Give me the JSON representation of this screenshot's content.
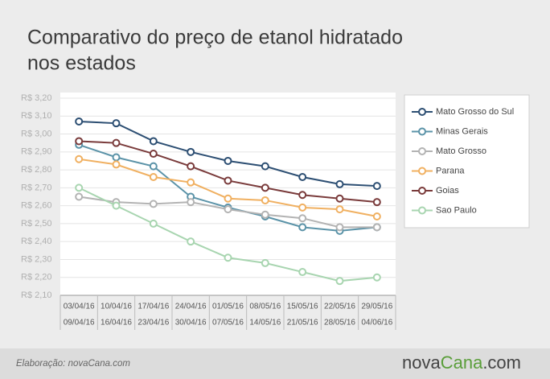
{
  "title": "Comparativo do preço de etanol hidratado nos estados",
  "footer": {
    "credit": "Elaboração: novaCana.com",
    "logo_left": "nova",
    "logo_mid": "Cana",
    "logo_right": ".com"
  },
  "chart_data": {
    "type": "line",
    "categories": [
      [
        "03/04/16",
        "09/04/16"
      ],
      [
        "10/04/16",
        "16/04/16"
      ],
      [
        "17/04/16",
        "23/04/16"
      ],
      [
        "24/04/16",
        "30/04/16"
      ],
      [
        "01/05/16",
        "07/05/16"
      ],
      [
        "08/05/16",
        "14/05/16"
      ],
      [
        "15/05/16",
        "21/05/16"
      ],
      [
        "22/05/16",
        "28/05/16"
      ],
      [
        "29/05/16",
        "04/06/16"
      ]
    ],
    "ylim": [
      2.1,
      3.2
    ],
    "yticks": [
      {
        "value": 2.1,
        "label": "R$ 2,10"
      },
      {
        "value": 2.2,
        "label": "R$ 2,20"
      },
      {
        "value": 2.3,
        "label": "R$ 2,30"
      },
      {
        "value": 2.4,
        "label": "R$ 2,40"
      },
      {
        "value": 2.5,
        "label": "R$ 2,50"
      },
      {
        "value": 2.6,
        "label": "R$ 2,60"
      },
      {
        "value": 2.7,
        "label": "R$ 2,70"
      },
      {
        "value": 2.8,
        "label": "R$ 2,80"
      },
      {
        "value": 2.9,
        "label": "R$ 2,90"
      },
      {
        "value": 3.0,
        "label": "R$ 3,00"
      },
      {
        "value": 3.1,
        "label": "R$ 3,10"
      },
      {
        "value": 3.2,
        "label": "R$ 3,20"
      }
    ],
    "grid": true,
    "legend": "right",
    "series": [
      {
        "name": "Mato Grosso do Sul",
        "color": "#2d4f73",
        "values": [
          3.07,
          3.06,
          2.96,
          2.9,
          2.85,
          2.82,
          2.76,
          2.72,
          2.71
        ]
      },
      {
        "name": "Minas Gerais",
        "color": "#5b93a8",
        "values": [
          2.94,
          2.87,
          2.82,
          2.65,
          2.59,
          2.54,
          2.48,
          2.46,
          2.48
        ]
      },
      {
        "name": "Mato Grosso",
        "color": "#b3b3b3",
        "values": [
          2.65,
          2.62,
          2.61,
          2.62,
          2.58,
          2.55,
          2.53,
          2.48,
          2.48
        ]
      },
      {
        "name": "Parana",
        "color": "#f0b061",
        "values": [
          2.86,
          2.83,
          2.76,
          2.73,
          2.64,
          2.63,
          2.59,
          2.58,
          2.54
        ]
      },
      {
        "name": "Goias",
        "color": "#7a3b3b",
        "values": [
          2.96,
          2.95,
          2.89,
          2.82,
          2.74,
          2.7,
          2.66,
          2.64,
          2.62
        ]
      },
      {
        "name": "Sao Paulo",
        "color": "#a8d5b0",
        "values": [
          2.7,
          2.6,
          2.5,
          2.4,
          2.31,
          2.28,
          2.23,
          2.18,
          2.2
        ]
      }
    ]
  }
}
